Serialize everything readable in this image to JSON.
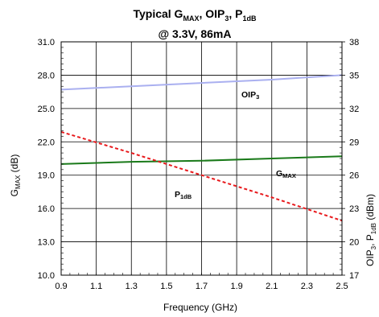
{
  "chart_data": {
    "type": "line",
    "title_line1": {
      "pre": "Typical G",
      "sub1": "MAX",
      "mid1": ", OIP",
      "sub2": "3",
      "mid2": ", P",
      "sub3": "1dB"
    },
    "title_line2": "@ 3.3V, 86mA",
    "xlabel": "Frequency (GHz)",
    "ylabel_left": {
      "main": "G",
      "sub": "MAX",
      "rest": " (dB)"
    },
    "ylabel_right": {
      "p1": "OIP",
      "s1": "3",
      "p2": ", P",
      "s2": "1dB",
      "p3": " (dBm)"
    },
    "xlim": [
      0.9,
      2.5
    ],
    "ylim_left": [
      10.0,
      31.0
    ],
    "ylim_right": [
      17,
      38
    ],
    "x_ticks": [
      "0.9",
      "1.1",
      "1.3",
      "1.5",
      "1.7",
      "1.9",
      "2.1",
      "2.3",
      "2.5"
    ],
    "y_left_ticks": [
      "10.0",
      "13.0",
      "16.0",
      "19.0",
      "22.0",
      "25.0",
      "28.0",
      "31.0"
    ],
    "y_right_ticks": [
      "17",
      "20",
      "23",
      "26",
      "29",
      "32",
      "35",
      "38"
    ],
    "grid": true,
    "series": [
      {
        "name": "OIP3",
        "label": {
          "main": "OIP",
          "sub": "3"
        },
        "axis": "right",
        "color": "#aab0f0",
        "style": "solid",
        "x": [
          0.9,
          1.3,
          1.7,
          2.1,
          2.5
        ],
        "y": [
          33.7,
          34.0,
          34.3,
          34.6,
          35.0
        ]
      },
      {
        "name": "GMAX",
        "label": {
          "main": "G",
          "sub": "MAX"
        },
        "axis": "left",
        "color": "#1a7a1a",
        "style": "solid",
        "x": [
          0.9,
          1.3,
          1.7,
          2.1,
          2.5
        ],
        "y": [
          20.0,
          20.2,
          20.3,
          20.5,
          20.7
        ]
      },
      {
        "name": "P1dB",
        "label": {
          "main": "P",
          "sub": "1dB"
        },
        "axis": "right",
        "color": "#e8191c",
        "style": "dashed",
        "x": [
          0.9,
          1.3,
          1.7,
          2.1,
          2.5
        ],
        "y": [
          29.9,
          28.0,
          26.0,
          24.0,
          21.9
        ]
      }
    ]
  }
}
